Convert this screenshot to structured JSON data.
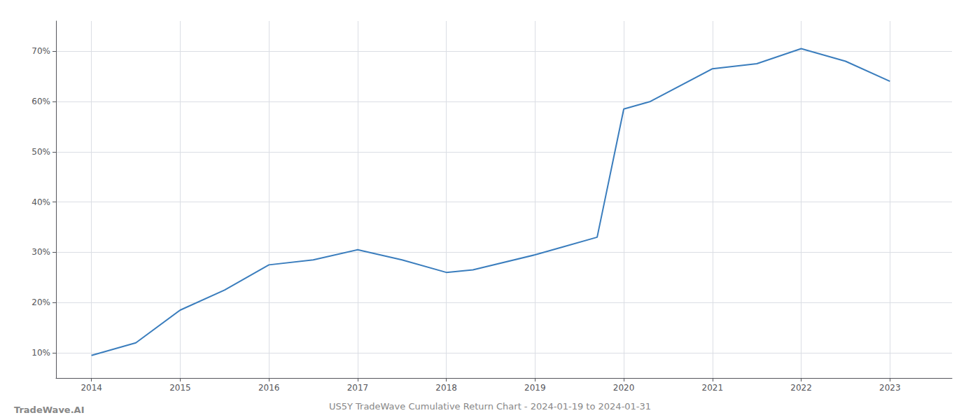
{
  "chart_data": {
    "type": "line",
    "title": "US5Y TradeWave Cumulative Return Chart - 2024-01-19 to 2024-01-31",
    "annotations": [
      "TradeWave.AI"
    ],
    "x": [
      2014.0,
      2014.5,
      2015.0,
      2015.5,
      2016.0,
      2016.5,
      2017.0,
      2017.5,
      2018.0,
      2018.3,
      2019.0,
      2019.3,
      2019.7,
      2020.0,
      2020.3,
      2021.0,
      2021.5,
      2022.0,
      2022.5,
      2023.0
    ],
    "values": [
      9.5,
      12.0,
      18.5,
      22.5,
      27.5,
      28.5,
      30.5,
      28.5,
      26.0,
      26.5,
      29.5,
      31.0,
      33.0,
      58.5,
      60.0,
      66.5,
      67.5,
      70.5,
      68.0,
      64.0
    ],
    "color": "#3a7dbd",
    "xlim": [
      2013.6,
      2023.7
    ],
    "xticks": [
      2014,
      2015,
      2016,
      2017,
      2018,
      2019,
      2020,
      2021,
      2022,
      2023
    ],
    "ylim": [
      5,
      76
    ],
    "yticks": [
      {
        "value": 10,
        "label": "10%"
      },
      {
        "value": 20,
        "label": "20%"
      },
      {
        "value": 30,
        "label": "30%"
      },
      {
        "value": 40,
        "label": "40%"
      },
      {
        "value": 50,
        "label": "50%"
      },
      {
        "value": 60,
        "label": "60%"
      },
      {
        "value": 70,
        "label": "70%"
      }
    ],
    "grid": true
  }
}
